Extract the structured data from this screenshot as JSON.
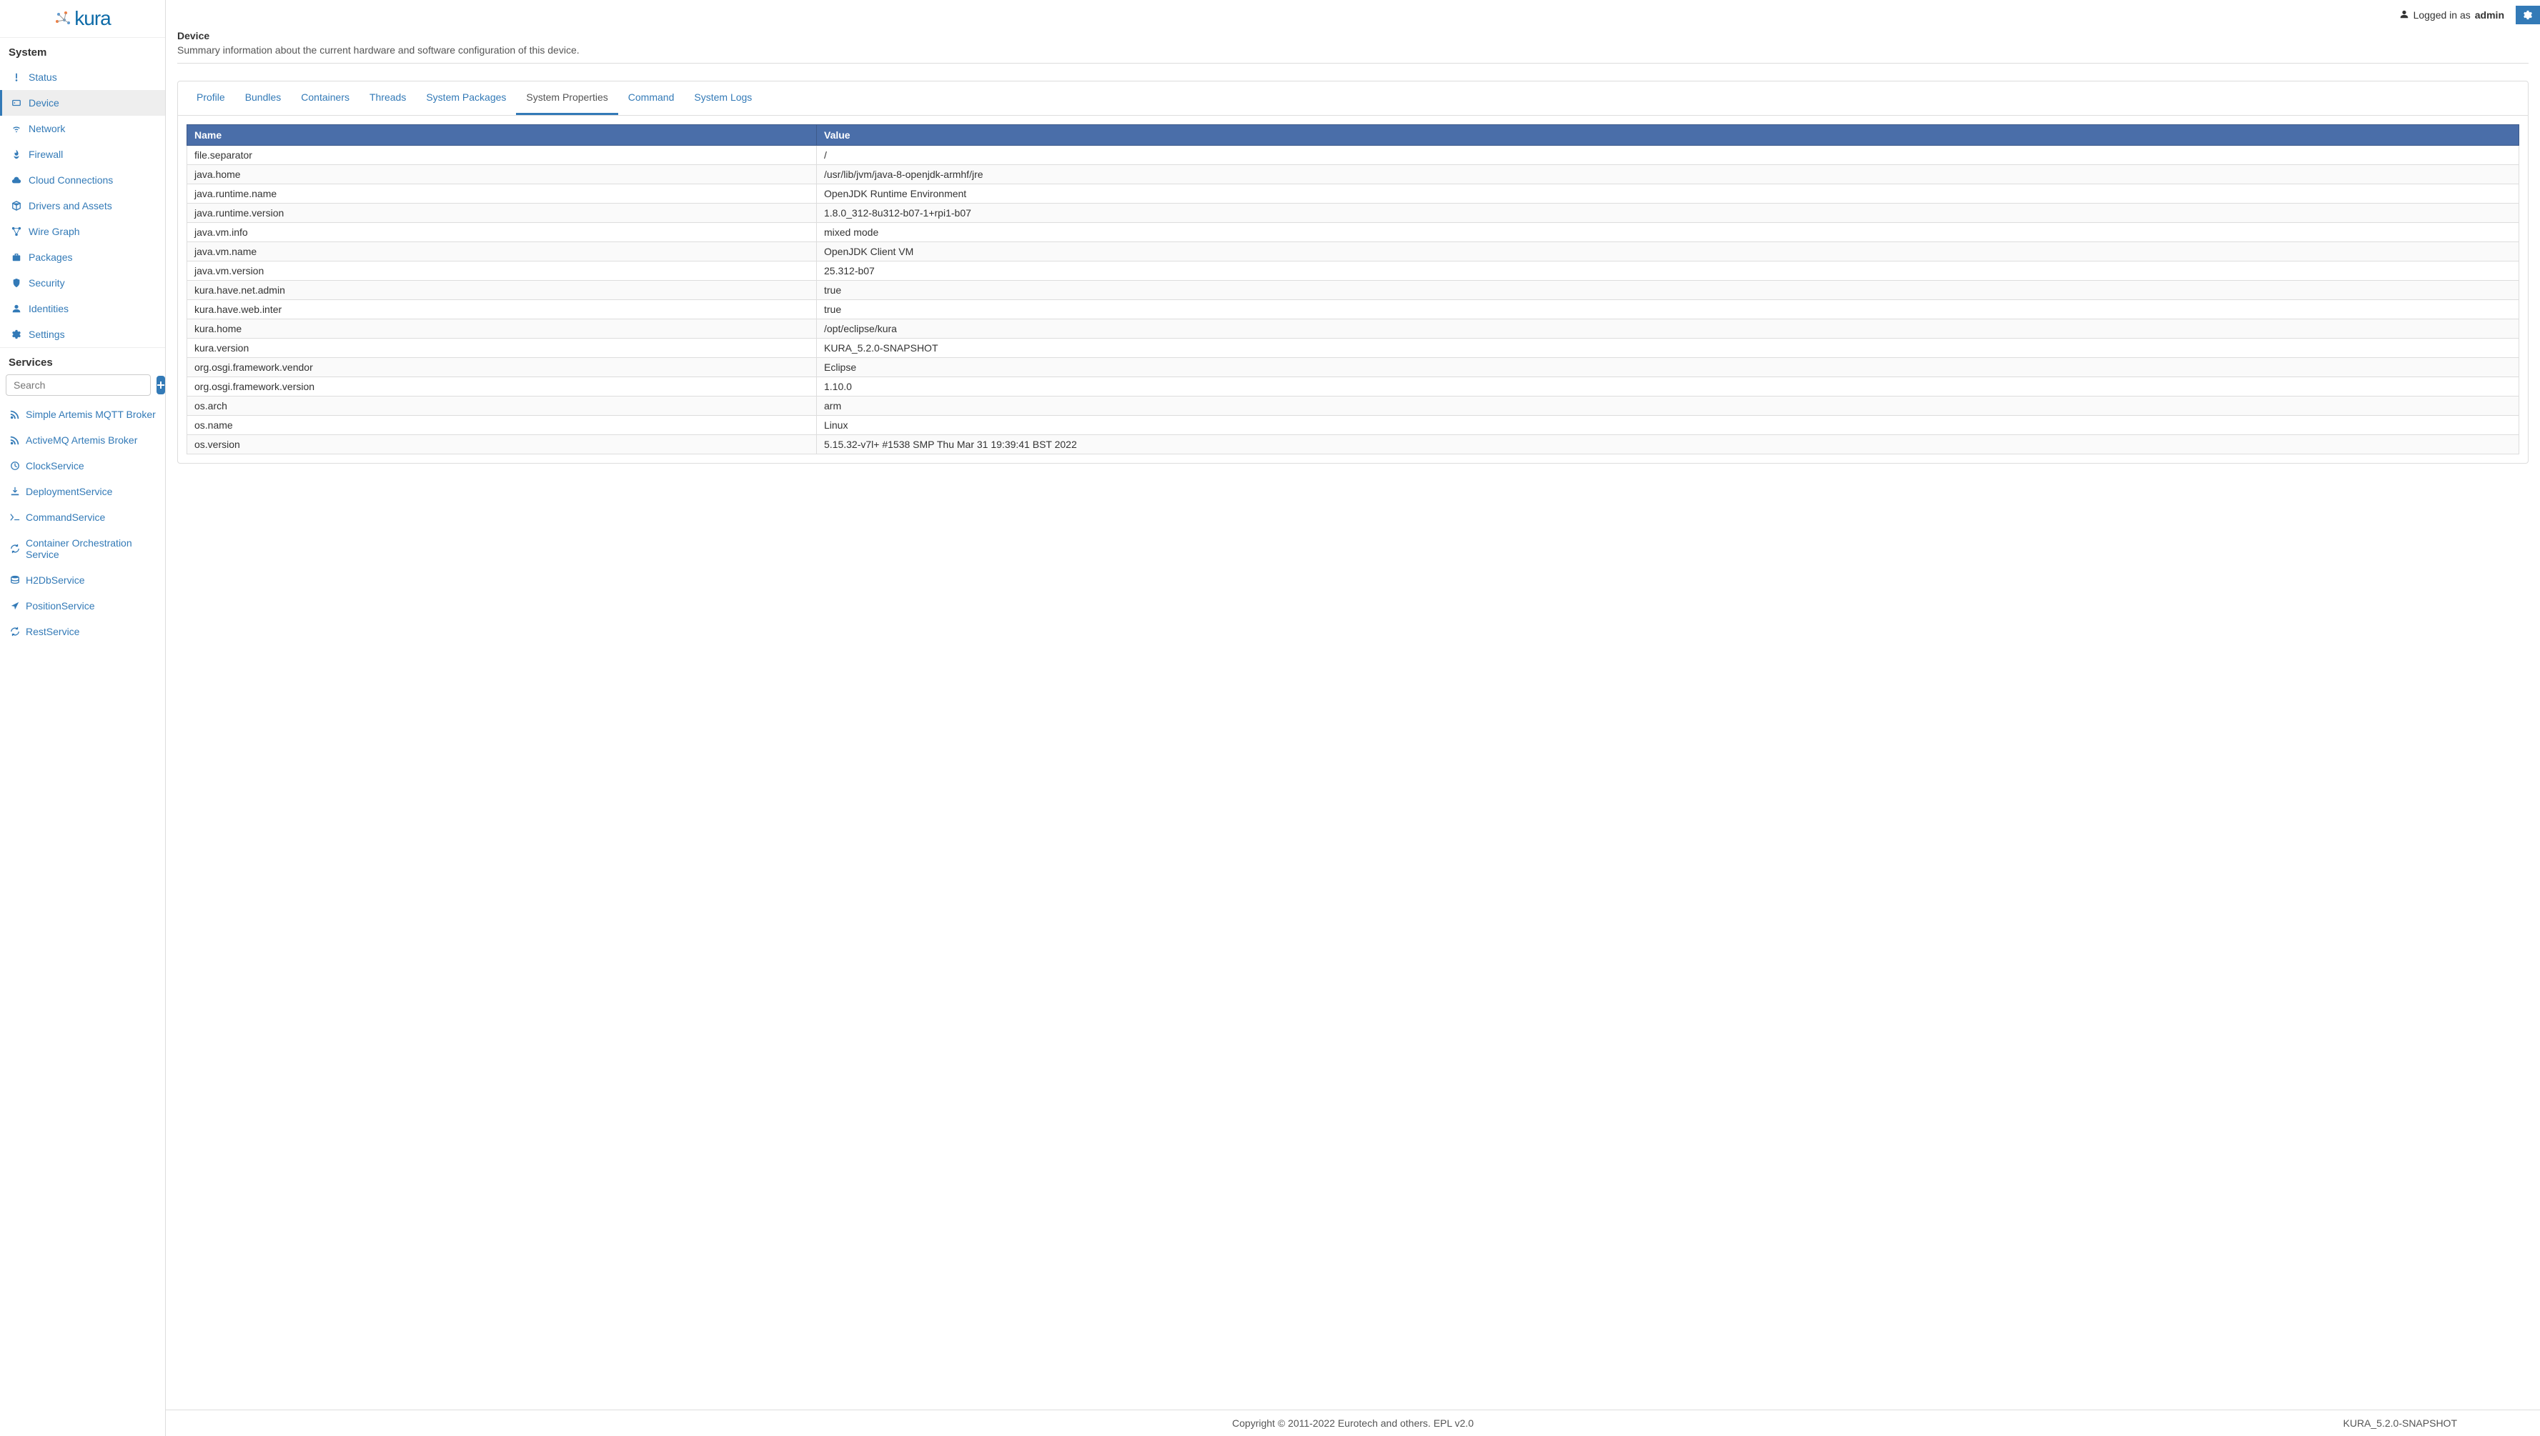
{
  "brand": {
    "name": "kura"
  },
  "topbar": {
    "loggedInAs": "Logged in as",
    "username": "admin"
  },
  "sidebar": {
    "systemHeader": "System",
    "servicesHeader": "Services",
    "searchPlaceholder": "Search",
    "nav": [
      {
        "key": "status",
        "label": "Status",
        "icon": "status"
      },
      {
        "key": "device",
        "label": "Device",
        "icon": "device",
        "active": true
      },
      {
        "key": "network",
        "label": "Network",
        "icon": "wifi"
      },
      {
        "key": "firewall",
        "label": "Firewall",
        "icon": "fire"
      },
      {
        "key": "cloud",
        "label": "Cloud Connections",
        "icon": "cloud"
      },
      {
        "key": "drivers",
        "label": "Drivers and Assets",
        "icon": "box"
      },
      {
        "key": "wiregraph",
        "label": "Wire Graph",
        "icon": "graph"
      },
      {
        "key": "packages",
        "label": "Packages",
        "icon": "briefcase"
      },
      {
        "key": "security",
        "label": "Security",
        "icon": "shield"
      },
      {
        "key": "identities",
        "label": "Identities",
        "icon": "user"
      },
      {
        "key": "settings",
        "label": "Settings",
        "icon": "gear"
      }
    ],
    "services": [
      {
        "label": "Simple Artemis MQTT Broker",
        "icon": "rss"
      },
      {
        "label": "ActiveMQ Artemis Broker",
        "icon": "rss"
      },
      {
        "label": "ClockService",
        "icon": "clock"
      },
      {
        "label": "DeploymentService",
        "icon": "download"
      },
      {
        "label": "CommandService",
        "icon": "terminal"
      },
      {
        "label": "Container Orchestration Service",
        "icon": "refresh"
      },
      {
        "label": "H2DbService",
        "icon": "database"
      },
      {
        "label": "PositionService",
        "icon": "location"
      },
      {
        "label": "RestService",
        "icon": "refresh"
      }
    ]
  },
  "page": {
    "title": "Device",
    "description": "Summary information about the current hardware and software configuration of this device."
  },
  "tabs": [
    {
      "label": "Profile"
    },
    {
      "label": "Bundles"
    },
    {
      "label": "Containers"
    },
    {
      "label": "Threads"
    },
    {
      "label": "System Packages"
    },
    {
      "label": "System Properties",
      "active": true
    },
    {
      "label": "Command"
    },
    {
      "label": "System Logs"
    }
  ],
  "table": {
    "columns": [
      "Name",
      "Value"
    ],
    "rows": [
      [
        "file.separator",
        "/"
      ],
      [
        "java.home",
        "/usr/lib/jvm/java-8-openjdk-armhf/jre"
      ],
      [
        "java.runtime.name",
        "OpenJDK Runtime Environment"
      ],
      [
        "java.runtime.version",
        "1.8.0_312-8u312-b07-1+rpi1-b07"
      ],
      [
        "java.vm.info",
        "mixed mode"
      ],
      [
        "java.vm.name",
        "OpenJDK Client VM"
      ],
      [
        "java.vm.version",
        "25.312-b07"
      ],
      [
        "kura.have.net.admin",
        "true"
      ],
      [
        "kura.have.web.inter",
        "true"
      ],
      [
        "kura.home",
        "/opt/eclipse/kura"
      ],
      [
        "kura.version",
        "KURA_5.2.0-SNAPSHOT"
      ],
      [
        "org.osgi.framework.vendor",
        "Eclipse"
      ],
      [
        "org.osgi.framework.version",
        "1.10.0"
      ],
      [
        "os.arch",
        "arm"
      ],
      [
        "os.name",
        "Linux"
      ],
      [
        "os.version",
        "5.15.32-v7l+ #1538 SMP Thu Mar 31 19:39:41 BST 2022"
      ]
    ]
  },
  "footer": {
    "copyright": "Copyright © 2011-2022 Eurotech and others. EPL v2.0",
    "version": "KURA_5.2.0-SNAPSHOT"
  },
  "colors": {
    "link": "#337ab7",
    "tableHeader": "#4a6ea9"
  }
}
